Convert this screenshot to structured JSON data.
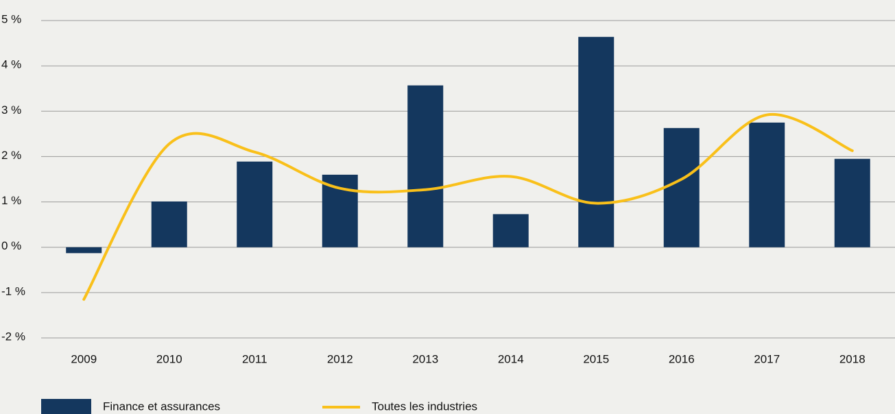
{
  "chart_data": {
    "type": "bar_line",
    "categories": [
      "2009",
      "2010",
      "2011",
      "2012",
      "2013",
      "2014",
      "2015",
      "2016",
      "2017",
      "2018"
    ],
    "series": [
      {
        "name": "Finance et assurances",
        "type": "bar",
        "color": "#14375e",
        "values": [
          -0.13,
          1.01,
          1.89,
          1.6,
          3.57,
          0.73,
          4.64,
          2.63,
          2.75,
          1.95
        ]
      },
      {
        "name": "Toutes les industries",
        "type": "line",
        "color": "#f9c01a",
        "values": [
          -1.15,
          2.28,
          2.1,
          1.3,
          1.27,
          1.56,
          0.97,
          1.5,
          2.92,
          2.13
        ]
      }
    ],
    "ylim": [
      -2,
      5
    ],
    "yticks": [
      {
        "value": -2,
        "label": "-2 %"
      },
      {
        "value": -1,
        "label": "-1 %"
      },
      {
        "value": 0,
        "label": "0 %"
      },
      {
        "value": 1,
        "label": "1 %"
      },
      {
        "value": 2,
        "label": "2 %"
      },
      {
        "value": 3,
        "label": "3 %"
      },
      {
        "value": 4,
        "label": "4 %"
      },
      {
        "value": 5,
        "label": "5 %"
      }
    ],
    "grid": true,
    "legend": "bottom"
  }
}
